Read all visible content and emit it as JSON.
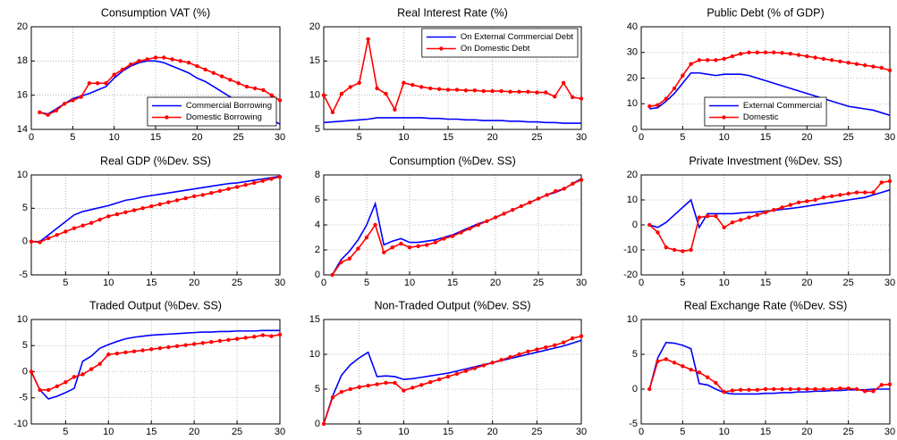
{
  "chart_data": [
    {
      "type": "line",
      "title": "Consumption VAT (%)",
      "x": [
        1,
        2,
        3,
        4,
        5,
        6,
        7,
        8,
        9,
        10,
        11,
        12,
        13,
        14,
        15,
        16,
        17,
        18,
        19,
        20,
        21,
        22,
        23,
        24,
        25,
        26,
        27,
        28,
        29,
        30
      ],
      "xlim": [
        0,
        30
      ],
      "xticks": [
        0,
        5,
        10,
        15,
        20,
        25,
        30
      ],
      "ylim": [
        14,
        20
      ],
      "yticks": [
        14,
        16,
        18,
        20
      ],
      "grid": true,
      "legend": "lower right",
      "series": [
        {
          "name": "Commercial Borrowing",
          "color": "#0000ff",
          "marker": false,
          "values": [
            15.0,
            14.9,
            15.2,
            15.5,
            15.8,
            15.95,
            16.1,
            16.3,
            16.5,
            17.0,
            17.4,
            17.7,
            17.9,
            18.0,
            18.0,
            17.9,
            17.7,
            17.5,
            17.3,
            17.0,
            16.8,
            16.5,
            16.2,
            15.9,
            15.6,
            15.4,
            15.3,
            15.1,
            14.6,
            14.3
          ]
        },
        {
          "name": "Domestic Borrowing",
          "color": "#ff0000",
          "marker": true,
          "values": [
            15.0,
            14.85,
            15.1,
            15.5,
            15.7,
            15.9,
            16.7,
            16.7,
            16.7,
            17.2,
            17.5,
            17.8,
            18.0,
            18.1,
            18.2,
            18.2,
            18.1,
            18.0,
            17.9,
            17.7,
            17.5,
            17.3,
            17.1,
            16.9,
            16.7,
            16.5,
            16.4,
            16.3,
            16.0,
            15.7
          ]
        }
      ]
    },
    {
      "type": "line",
      "title": "Real Interest Rate (%)",
      "x": [
        1,
        2,
        3,
        4,
        5,
        6,
        7,
        8,
        9,
        10,
        11,
        12,
        13,
        14,
        15,
        16,
        17,
        18,
        19,
        20,
        21,
        22,
        23,
        24,
        25,
        26,
        27,
        28,
        29,
        30
      ],
      "xlim": [
        1,
        30
      ],
      "xticks": [
        5,
        10,
        15,
        20,
        25,
        30
      ],
      "ylim": [
        5,
        20
      ],
      "yticks": [
        5,
        10,
        15,
        20
      ],
      "grid": true,
      "legend": "upper right",
      "series": [
        {
          "name": "On External Commercial Debt",
          "color": "#0000ff",
          "marker": false,
          "values": [
            6.0,
            6.1,
            6.2,
            6.3,
            6.4,
            6.5,
            6.7,
            6.7,
            6.7,
            6.7,
            6.7,
            6.7,
            6.6,
            6.6,
            6.5,
            6.5,
            6.4,
            6.4,
            6.3,
            6.3,
            6.3,
            6.2,
            6.2,
            6.1,
            6.1,
            6.0,
            6.0,
            5.9,
            5.9,
            5.9
          ]
        },
        {
          "name": "On Domestic Debt",
          "color": "#ff0000",
          "marker": true,
          "values": [
            10.0,
            7.5,
            10.2,
            11.2,
            11.8,
            18.2,
            11.0,
            10.2,
            7.9,
            11.8,
            11.5,
            11.2,
            11.0,
            10.9,
            10.8,
            10.8,
            10.7,
            10.7,
            10.6,
            10.6,
            10.6,
            10.5,
            10.5,
            10.5,
            10.4,
            10.4,
            9.8,
            11.8,
            9.7,
            9.5
          ]
        }
      ]
    },
    {
      "type": "line",
      "title": "Public Debt (% of GDP)",
      "x": [
        1,
        2,
        3,
        4,
        5,
        6,
        7,
        8,
        9,
        10,
        11,
        12,
        13,
        14,
        15,
        16,
        17,
        18,
        19,
        20,
        21,
        22,
        23,
        24,
        25,
        26,
        27,
        28,
        29,
        30
      ],
      "xlim": [
        0,
        30
      ],
      "xticks": [
        0,
        5,
        10,
        15,
        20,
        25,
        30
      ],
      "ylim": [
        0,
        40
      ],
      "yticks": [
        0,
        10,
        20,
        30,
        40
      ],
      "grid": true,
      "legend": "lower center",
      "series": [
        {
          "name": "External Commercial",
          "color": "#0000ff",
          "marker": false,
          "values": [
            8,
            8.5,
            11,
            14,
            18,
            22,
            22,
            21.5,
            21,
            21.5,
            21.5,
            21.5,
            21,
            20,
            19,
            18,
            17,
            16,
            15,
            14,
            13,
            12,
            11,
            10,
            9,
            8.5,
            8,
            7.5,
            6.5,
            5.5
          ]
        },
        {
          "name": "Domestic",
          "color": "#ff0000",
          "marker": true,
          "values": [
            9,
            9.5,
            12,
            16,
            21,
            25.5,
            27,
            27,
            27,
            27.5,
            28.5,
            29.5,
            30,
            30,
            30,
            30,
            29.8,
            29.5,
            29,
            28.5,
            28,
            27.5,
            27,
            26.5,
            26,
            25.5,
            25,
            24.5,
            24,
            23
          ]
        }
      ]
    },
    {
      "type": "line",
      "title": "Real GDP (%Dev. SS)",
      "x": [
        1,
        2,
        3,
        4,
        5,
        6,
        7,
        8,
        9,
        10,
        11,
        12,
        13,
        14,
        15,
        16,
        17,
        18,
        19,
        20,
        21,
        22,
        23,
        24,
        25,
        26,
        27,
        28,
        29,
        30
      ],
      "xlim": [
        1,
        30
      ],
      "xticks": [
        5,
        10,
        15,
        20,
        25,
        30
      ],
      "ylim": [
        -5,
        10
      ],
      "yticks": [
        -5,
        0,
        5,
        10
      ],
      "grid": true,
      "series": [
        {
          "color": "#0000ff",
          "marker": false,
          "values": [
            0,
            0,
            1,
            2,
            3,
            4,
            4.5,
            4.8,
            5.1,
            5.4,
            5.8,
            6.2,
            6.4,
            6.7,
            6.9,
            7.1,
            7.3,
            7.5,
            7.7,
            7.9,
            8.1,
            8.3,
            8.5,
            8.7,
            8.8,
            9.0,
            9.2,
            9.4,
            9.6,
            9.8
          ]
        },
        {
          "color": "#ff0000",
          "marker": true,
          "values": [
            0,
            -0.1,
            0.5,
            1,
            1.5,
            2,
            2.4,
            2.8,
            3.3,
            3.8,
            4.1,
            4.4,
            4.7,
            5.0,
            5.3,
            5.6,
            5.9,
            6.2,
            6.5,
            6.8,
            7.0,
            7.3,
            7.6,
            7.9,
            8.2,
            8.5,
            8.8,
            9.1,
            9.4,
            9.7
          ]
        }
      ]
    },
    {
      "type": "line",
      "title": "Consumption (%Dev. SS)",
      "x": [
        1,
        2,
        3,
        4,
        5,
        6,
        7,
        8,
        9,
        10,
        11,
        12,
        13,
        14,
        15,
        16,
        17,
        18,
        19,
        20,
        21,
        22,
        23,
        24,
        25,
        26,
        27,
        28,
        29,
        30
      ],
      "xlim": [
        0,
        30
      ],
      "xticks": [
        0,
        5,
        10,
        15,
        20,
        25,
        30
      ],
      "ylim": [
        0,
        8
      ],
      "yticks": [
        0,
        2,
        4,
        6,
        8
      ],
      "grid": true,
      "series": [
        {
          "color": "#0000ff",
          "marker": false,
          "values": [
            0,
            1.2,
            1.9,
            2.8,
            4.0,
            5.7,
            2.4,
            2.7,
            2.9,
            2.6,
            2.6,
            2.7,
            2.8,
            3.0,
            3.2,
            3.5,
            3.8,
            4.1,
            4.3,
            4.6,
            4.9,
            5.2,
            5.5,
            5.8,
            6.1,
            6.4,
            6.6,
            6.9,
            7.3,
            7.7
          ]
        },
        {
          "color": "#ff0000",
          "marker": true,
          "values": [
            0,
            1.0,
            1.3,
            2.1,
            3.0,
            4.0,
            1.8,
            2.2,
            2.5,
            2.2,
            2.3,
            2.4,
            2.6,
            2.9,
            3.1,
            3.4,
            3.7,
            4.0,
            4.3,
            4.6,
            4.9,
            5.2,
            5.5,
            5.8,
            6.1,
            6.4,
            6.7,
            6.9,
            7.3,
            7.6
          ]
        }
      ]
    },
    {
      "type": "line",
      "title": "Private Investment (%Dev. SS)",
      "x": [
        1,
        2,
        3,
        4,
        5,
        6,
        7,
        8,
        9,
        10,
        11,
        12,
        13,
        14,
        15,
        16,
        17,
        18,
        19,
        20,
        21,
        22,
        23,
        24,
        25,
        26,
        27,
        28,
        29,
        30
      ],
      "xlim": [
        0,
        30
      ],
      "xticks": [
        0,
        5,
        10,
        15,
        20,
        25,
        30
      ],
      "ylim": [
        -20,
        20
      ],
      "yticks": [
        -20,
        -10,
        0,
        10,
        20
      ],
      "grid": true,
      "series": [
        {
          "color": "#0000ff",
          "marker": false,
          "values": [
            0,
            -1,
            1,
            4,
            7,
            10,
            -1,
            4.5,
            4.5,
            4.5,
            4.5,
            4.8,
            5,
            5.2,
            5.5,
            5.8,
            6.2,
            6.6,
            7,
            7.5,
            8,
            8.5,
            9,
            9.5,
            10,
            10.5,
            11,
            12,
            13,
            14
          ]
        },
        {
          "color": "#ff0000",
          "marker": true,
          "values": [
            0,
            -3,
            -9,
            -10,
            -10.5,
            -10,
            3,
            3.5,
            3.5,
            -1,
            1,
            2,
            3,
            4,
            5,
            6,
            7,
            8,
            9,
            9.5,
            10,
            11,
            11.5,
            12,
            12.5,
            13,
            13,
            13,
            17,
            17.5
          ]
        }
      ]
    },
    {
      "type": "line",
      "title": "Traded Output (%Dev. SS)",
      "x": [
        1,
        2,
        3,
        4,
        5,
        6,
        7,
        8,
        9,
        10,
        11,
        12,
        13,
        14,
        15,
        16,
        17,
        18,
        19,
        20,
        21,
        22,
        23,
        24,
        25,
        26,
        27,
        28,
        29,
        30
      ],
      "xlim": [
        1,
        30
      ],
      "xticks": [
        5,
        10,
        15,
        20,
        25,
        30
      ],
      "ylim": [
        -10,
        10
      ],
      "yticks": [
        -10,
        -5,
        0,
        5,
        10
      ],
      "grid": true,
      "series": [
        {
          "color": "#0000ff",
          "marker": false,
          "values": [
            0,
            -3.5,
            -5.2,
            -4.7,
            -4,
            -3.2,
            2,
            3,
            4.5,
            5.2,
            5.8,
            6.3,
            6.6,
            6.8,
            7,
            7.1,
            7.2,
            7.3,
            7.4,
            7.5,
            7.6,
            7.6,
            7.7,
            7.7,
            7.8,
            7.8,
            7.8,
            7.9,
            7.9,
            7.9
          ]
        },
        {
          "color": "#ff0000",
          "marker": true,
          "values": [
            0,
            -3.5,
            -3.5,
            -2.8,
            -2,
            -1,
            -0.5,
            0.5,
            1.5,
            3.3,
            3.5,
            3.7,
            3.9,
            4.1,
            4.3,
            4.5,
            4.7,
            4.9,
            5.1,
            5.3,
            5.5,
            5.7,
            5.9,
            6.1,
            6.3,
            6.5,
            6.7,
            7,
            6.8,
            7.1
          ]
        }
      ]
    },
    {
      "type": "line",
      "title": "Non-Traded Output (%Dev. SS)",
      "x": [
        1,
        2,
        3,
        4,
        5,
        6,
        7,
        8,
        9,
        10,
        11,
        12,
        13,
        14,
        15,
        16,
        17,
        18,
        19,
        20,
        21,
        22,
        23,
        24,
        25,
        26,
        27,
        28,
        29,
        30
      ],
      "xlim": [
        1,
        30
      ],
      "xticks": [
        5,
        10,
        15,
        20,
        25,
        30
      ],
      "ylim": [
        0,
        15
      ],
      "yticks": [
        0,
        5,
        10,
        15
      ],
      "grid": true,
      "series": [
        {
          "color": "#0000ff",
          "marker": false,
          "values": [
            0,
            4,
            7,
            8.5,
            9.5,
            10.3,
            6.8,
            6.9,
            6.8,
            6.4,
            6.5,
            6.7,
            6.9,
            7.1,
            7.3,
            7.6,
            7.9,
            8.2,
            8.5,
            8.8,
            9.1,
            9.4,
            9.7,
            10,
            10.3,
            10.6,
            10.9,
            11.2,
            11.6,
            12
          ]
        },
        {
          "color": "#ff0000",
          "marker": true,
          "values": [
            0,
            3.8,
            4.6,
            5,
            5.3,
            5.5,
            5.7,
            5.9,
            5.9,
            4.8,
            5.2,
            5.6,
            6,
            6.4,
            6.8,
            7.2,
            7.6,
            8,
            8.4,
            8.8,
            9.2,
            9.6,
            10,
            10.4,
            10.7,
            11,
            11.3,
            11.7,
            12.3,
            12.6
          ]
        }
      ]
    },
    {
      "type": "line",
      "title": "Real Exchange Rate (%Dev. SS)",
      "x": [
        1,
        2,
        3,
        4,
        5,
        6,
        7,
        8,
        9,
        10,
        11,
        12,
        13,
        14,
        15,
        16,
        17,
        18,
        19,
        20,
        21,
        22,
        23,
        24,
        25,
        26,
        27,
        28,
        29,
        30
      ],
      "xlim": [
        0,
        30
      ],
      "xticks": [
        0,
        5,
        10,
        15,
        20,
        25,
        30
      ],
      "ylim": [
        -5,
        10
      ],
      "yticks": [
        -5,
        0,
        5,
        10
      ],
      "grid": true,
      "series": [
        {
          "color": "#0000ff",
          "marker": false,
          "values": [
            0,
            4.5,
            6.7,
            6.6,
            6.3,
            5.8,
            0.8,
            0.6,
            0,
            -0.5,
            -0.7,
            -0.7,
            -0.7,
            -0.7,
            -0.6,
            -0.6,
            -0.5,
            -0.5,
            -0.4,
            -0.4,
            -0.3,
            -0.3,
            -0.2,
            -0.2,
            -0.1,
            -0.1,
            -0.1,
            0,
            0,
            0
          ]
        },
        {
          "color": "#ff0000",
          "marker": true,
          "values": [
            0,
            4,
            4.3,
            3.8,
            3.3,
            2.8,
            2.4,
            1.7,
            0.9,
            -0.4,
            -0.2,
            -0.1,
            -0.1,
            -0.1,
            0,
            0,
            0,
            0,
            0,
            0,
            0,
            0,
            0,
            0.1,
            0.1,
            0,
            -0.3,
            -0.3,
            0.6,
            0.7
          ]
        }
      ]
    }
  ]
}
